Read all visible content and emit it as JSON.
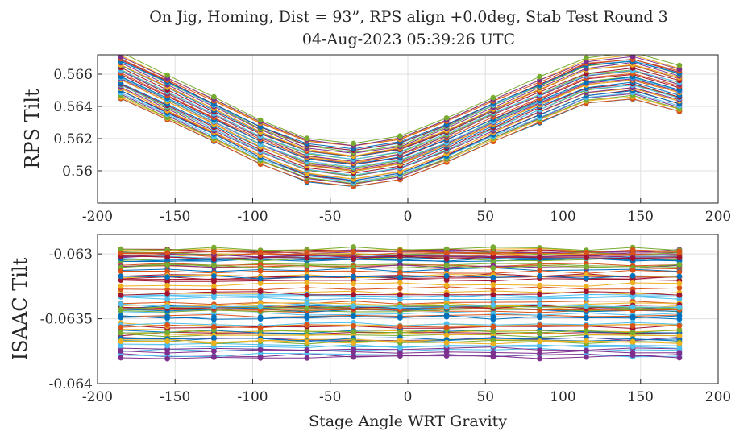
{
  "figure": {
    "title_line1": "On Jig, Homing, Dist = 93”, RPS align +0.0deg, Stab Test Round 3",
    "title_line2": "04-Aug-2023 05:39:26 UTC"
  },
  "chart_data": [
    {
      "type": "line",
      "title": "On Jig, Homing, Dist = 93”, RPS align +0.0deg, Stab Test Round 3 / 04-Aug-2023 05:39:26 UTC",
      "xlabel": "",
      "ylabel": "RPS Tilt",
      "xlim": [
        -200,
        200
      ],
      "ylim": [
        0.558,
        0.5672
      ],
      "xticks": [
        -200,
        -150,
        -100,
        -50,
        0,
        50,
        100,
        150,
        200
      ],
      "xtick_labels": [
        "-200",
        "-150",
        "-100",
        "-50",
        "0",
        "50",
        "100",
        "150",
        "200"
      ],
      "yticks": [
        0.56,
        0.562,
        0.564,
        0.566
      ],
      "ytick_labels": [
        "0.56",
        "0.562",
        "0.564",
        "0.566"
      ],
      "grid": true,
      "x": [
        -185,
        -155,
        -125,
        -95,
        -65,
        -35,
        -5,
        25,
        55,
        85,
        115,
        145,
        175
      ],
      "series_shape_values": [
        0.0035,
        0.00215,
        0.0008,
        -0.0006,
        -0.0017,
        -0.00205,
        -0.0016,
        -0.0005,
        0.0008,
        0.002,
        0.0032,
        0.0035,
        0.0027
      ],
      "series_baseline_range": [
        0.561,
        0.5637
      ],
      "series_count": 40,
      "series_note": "multiple runs, each ~ baseline + shape value"
    },
    {
      "type": "line",
      "title": "",
      "xlabel": "Stage Angle WRT Gravity",
      "ylabel": "ISAAC Tilt",
      "xlim": [
        -200,
        200
      ],
      "ylim": [
        -0.064,
        -0.06285
      ],
      "xticks": [
        -200,
        -150,
        -100,
        -50,
        0,
        50,
        100,
        150,
        200
      ],
      "xtick_labels": [
        "-200",
        "-150",
        "-100",
        "-50",
        "0",
        "50",
        "100",
        "150",
        "200"
      ],
      "yticks": [
        -0.064,
        -0.0635,
        -0.063
      ],
      "ytick_labels": [
        "-0.064",
        "-0.0635",
        "-0.063"
      ],
      "grid": true,
      "x": [
        -185,
        -155,
        -125,
        -95,
        -65,
        -35,
        -5,
        25,
        55,
        85,
        115,
        145,
        175
      ],
      "series_value_range": [
        -0.06381,
        -0.06295
      ],
      "series_count": 80,
      "series_note": "many nearly flat runs with small jitter"
    }
  ],
  "colors": {
    "palette": [
      "#0072BD",
      "#D95319",
      "#EDB120",
      "#7E2F8E",
      "#77AC30",
      "#4DBEEE",
      "#A2142F"
    ],
    "axis": "#262626",
    "grid": "#dfdfdf"
  }
}
